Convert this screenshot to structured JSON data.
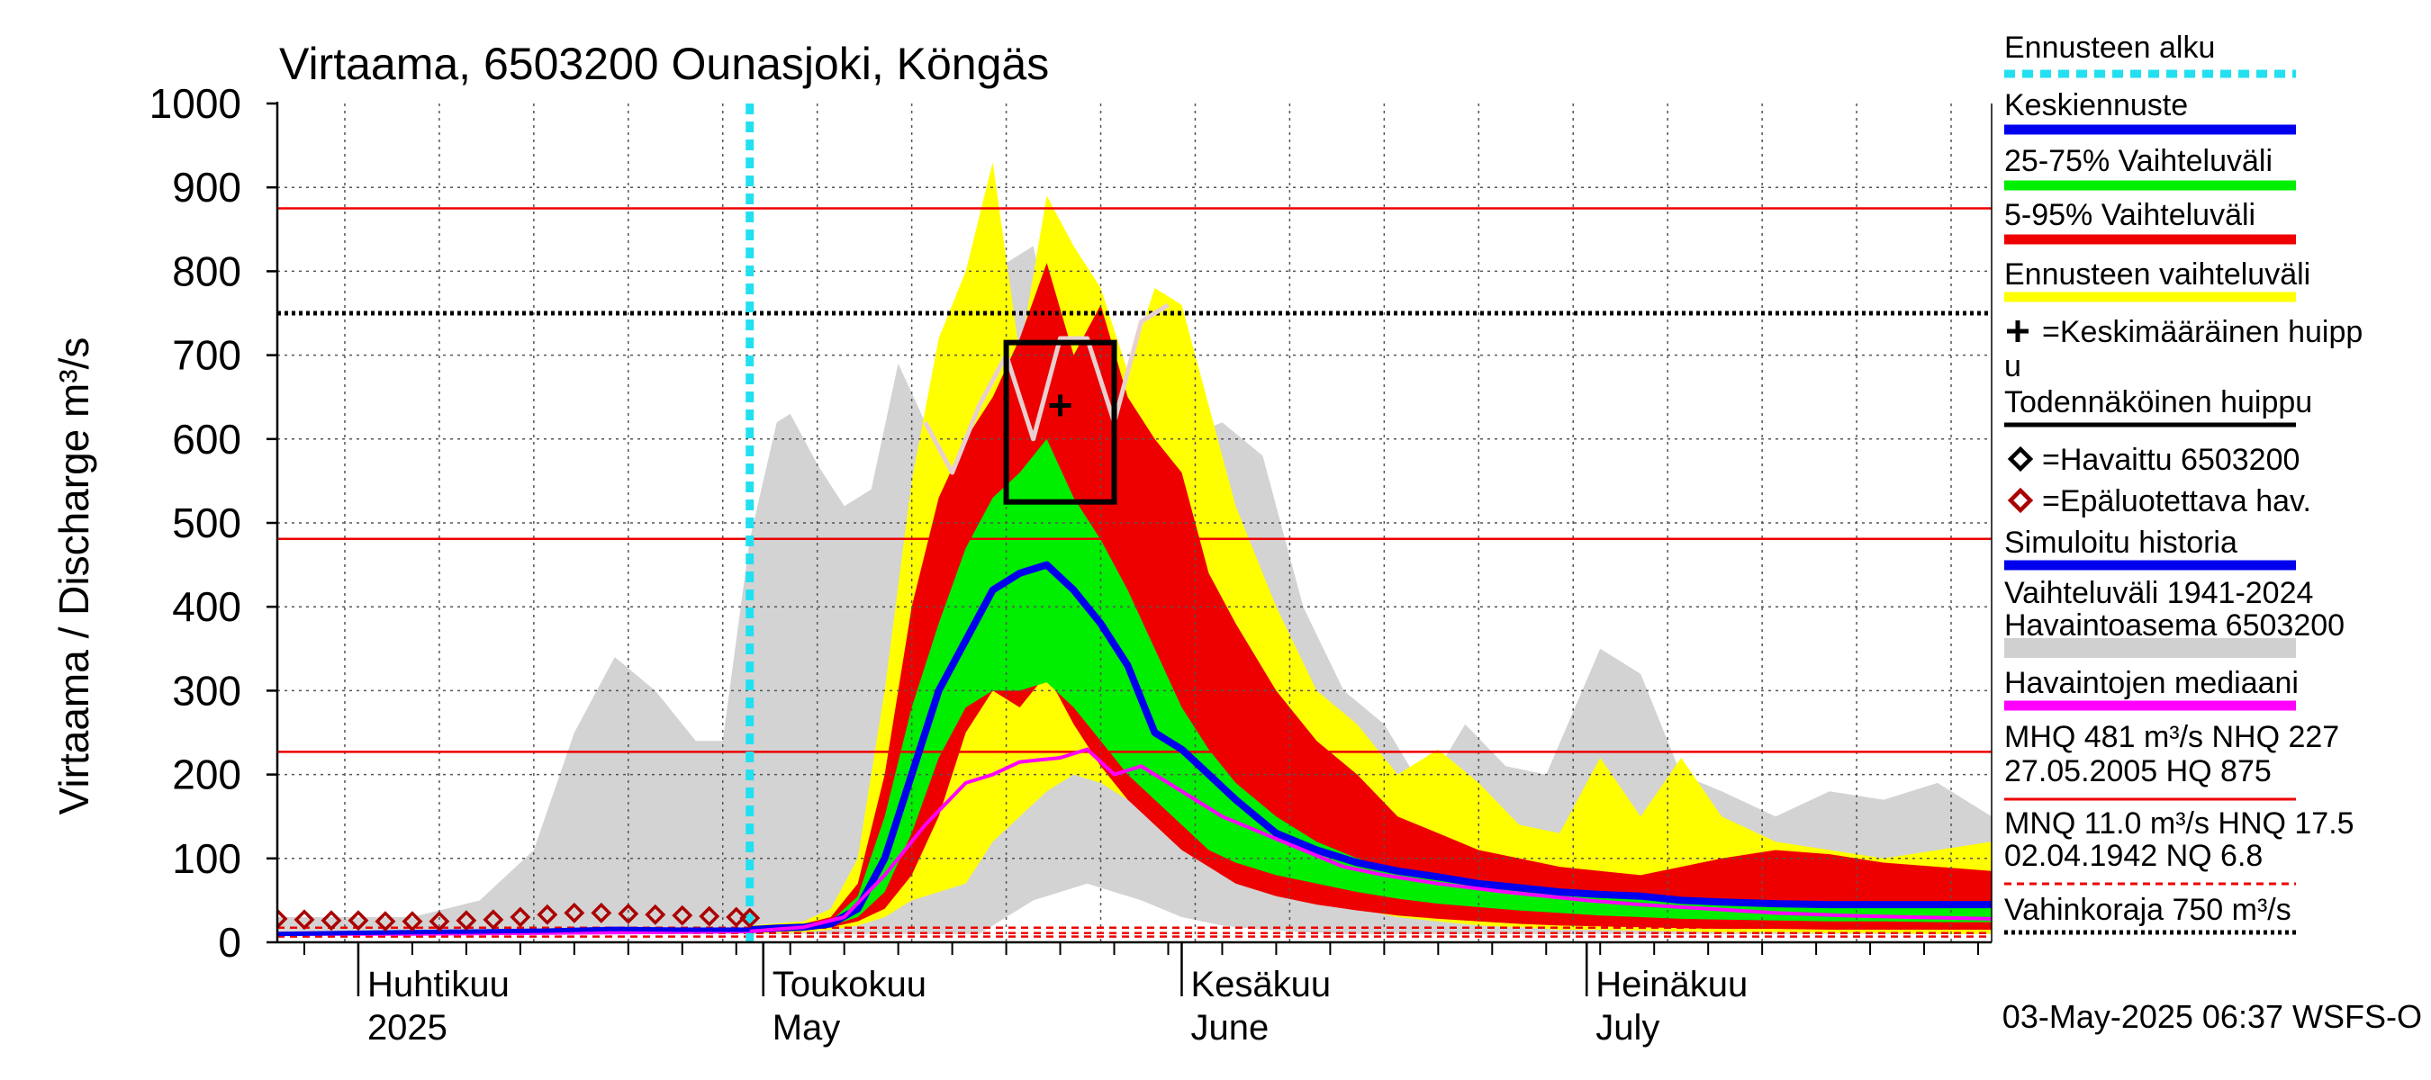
{
  "chart_data": {
    "type": "area",
    "title": "Virtaama, 6503200 Ounasjoki, Köngäs",
    "ylabel": "Virtaama / Discharge   m³/s",
    "ylim": [
      0,
      1000
    ],
    "yticks": [
      "0",
      "100",
      "200",
      "300",
      "400",
      "500",
      "600",
      "700",
      "800",
      "900",
      "1000"
    ],
    "xlim": [
      "2025-03-26",
      "2025-07-31"
    ],
    "month_labels": [
      {
        "fi": "Huhtikuu",
        "en": "2025",
        "date": "2025-04-01"
      },
      {
        "fi": "Toukokuu",
        "en": "May",
        "date": "2025-05-01"
      },
      {
        "fi": "Kesäkuu",
        "en": "June",
        "date": "2025-06-01"
      },
      {
        "fi": "Heinäkuu",
        "en": "July",
        "date": "2025-07-01"
      }
    ],
    "forecast_start": "2025-04-30",
    "reference_lines": {
      "MHQ": 481,
      "NHQ": 227,
      "HQ": 875,
      "MNQ": 11.0,
      "HNQ": 17.5,
      "NQ": 6.8,
      "damage_limit": 750
    },
    "historical_range_band": {
      "x": [
        "2025-03-26",
        "2025-04-05",
        "2025-04-10",
        "2025-04-14",
        "2025-04-17",
        "2025-04-20",
        "2025-04-23",
        "2025-04-26",
        "2025-04-28",
        "2025-04-30",
        "2025-05-02",
        "2025-05-03",
        "2025-05-05",
        "2025-05-07",
        "2025-05-09",
        "2025-05-11",
        "2025-05-13",
        "2025-05-15",
        "2025-05-17",
        "2025-05-19",
        "2025-05-21",
        "2025-05-23",
        "2025-05-25",
        "2025-05-27",
        "2025-05-29",
        "2025-06-01",
        "2025-06-04",
        "2025-06-07",
        "2025-06-10",
        "2025-06-13",
        "2025-06-16",
        "2025-06-19",
        "2025-06-22",
        "2025-06-25",
        "2025-06-28",
        "2025-07-02",
        "2025-07-05",
        "2025-07-08",
        "2025-07-11",
        "2025-07-15",
        "2025-07-19",
        "2025-07-23",
        "2025-07-27",
        "2025-07-31"
      ],
      "upper": [
        30,
        30,
        50,
        110,
        250,
        340,
        300,
        240,
        240,
        480,
        620,
        630,
        570,
        520,
        540,
        690,
        620,
        700,
        640,
        810,
        830,
        690,
        720,
        600,
        610,
        600,
        620,
        580,
        400,
        300,
        260,
        180,
        260,
        210,
        200,
        350,
        320,
        200,
        180,
        150,
        180,
        170,
        190,
        150
      ],
      "lower": [
        10,
        10,
        10,
        10,
        10,
        10,
        10,
        10,
        10,
        10,
        10,
        10,
        10,
        10,
        10,
        10,
        10,
        10,
        10,
        30,
        50,
        60,
        70,
        60,
        50,
        30,
        20,
        15,
        12,
        10,
        10,
        10,
        10,
        10,
        10,
        10,
        10,
        10,
        10,
        10,
        10,
        10,
        10,
        10
      ]
    },
    "forecast_range_yellow": {
      "x": [
        "2025-04-30",
        "2025-05-04",
        "2025-05-06",
        "2025-05-08",
        "2025-05-10",
        "2025-05-12",
        "2025-05-14",
        "2025-05-16",
        "2025-05-18",
        "2025-05-20",
        "2025-05-22",
        "2025-05-24",
        "2025-05-26",
        "2025-05-28",
        "2025-05-30",
        "2025-06-01",
        "2025-06-03",
        "2025-06-05",
        "2025-06-08",
        "2025-06-11",
        "2025-06-14",
        "2025-06-17",
        "2025-06-20",
        "2025-06-23",
        "2025-06-26",
        "2025-06-29",
        "2025-07-02",
        "2025-07-05",
        "2025-07-08",
        "2025-07-11",
        "2025-07-15",
        "2025-07-19",
        "2025-07-23",
        "2025-07-27",
        "2025-07-31"
      ],
      "upper": [
        20,
        25,
        40,
        100,
        300,
        550,
        720,
        800,
        930,
        700,
        890,
        830,
        780,
        680,
        780,
        760,
        640,
        520,
        400,
        300,
        260,
        200,
        230,
        190,
        140,
        130,
        220,
        150,
        220,
        150,
        120,
        110,
        100,
        110,
        120
      ],
      "lower": [
        10,
        12,
        15,
        20,
        30,
        50,
        60,
        70,
        120,
        150,
        180,
        200,
        190,
        170,
        150,
        130,
        100,
        80,
        60,
        50,
        40,
        30,
        25,
        20,
        18,
        15,
        15,
        14,
        13,
        12,
        12,
        11,
        11,
        10,
        10
      ]
    },
    "forecast_range_red": {
      "x": [
        "2025-04-30",
        "2025-05-04",
        "2025-05-06",
        "2025-05-08",
        "2025-05-10",
        "2025-05-12",
        "2025-05-14",
        "2025-05-16",
        "2025-05-18",
        "2025-05-20",
        "2025-05-22",
        "2025-05-24",
        "2025-05-26",
        "2025-05-28",
        "2025-05-30",
        "2025-06-01",
        "2025-06-03",
        "2025-06-05",
        "2025-06-08",
        "2025-06-11",
        "2025-06-14",
        "2025-06-17",
        "2025-06-20",
        "2025-06-23",
        "2025-06-26",
        "2025-06-29",
        "2025-07-02",
        "2025-07-05",
        "2025-07-08",
        "2025-07-11",
        "2025-07-15",
        "2025-07-19",
        "2025-07-23",
        "2025-07-27",
        "2025-07-31"
      ],
      "upper": [
        18,
        22,
        30,
        70,
        200,
        400,
        530,
        600,
        650,
        720,
        810,
        700,
        760,
        650,
        600,
        560,
        440,
        380,
        300,
        240,
        200,
        150,
        130,
        110,
        100,
        90,
        85,
        80,
        90,
        100,
        110,
        105,
        95,
        90,
        85
      ],
      "lower": [
        12,
        14,
        18,
        25,
        40,
        80,
        150,
        250,
        300,
        280,
        320,
        260,
        210,
        170,
        140,
        110,
        90,
        70,
        55,
        45,
        38,
        32,
        28,
        25,
        22,
        20,
        19,
        18,
        17,
        16,
        16,
        15,
        15,
        15,
        15
      ]
    },
    "forecast_range_green": {
      "x": [
        "2025-04-30",
        "2025-05-04",
        "2025-05-06",
        "2025-05-08",
        "2025-05-10",
        "2025-05-12",
        "2025-05-14",
        "2025-05-16",
        "2025-05-18",
        "2025-05-20",
        "2025-05-22",
        "2025-05-24",
        "2025-05-26",
        "2025-05-28",
        "2025-05-30",
        "2025-06-01",
        "2025-06-03",
        "2025-06-05",
        "2025-06-08",
        "2025-06-11",
        "2025-06-14",
        "2025-06-17",
        "2025-06-20",
        "2025-06-23",
        "2025-06-26",
        "2025-06-29",
        "2025-07-02",
        "2025-07-05",
        "2025-07-08",
        "2025-07-11",
        "2025-07-15",
        "2025-07-19",
        "2025-07-23",
        "2025-07-27",
        "2025-07-31"
      ],
      "upper": [
        16,
        20,
        25,
        55,
        150,
        280,
        380,
        470,
        530,
        560,
        600,
        530,
        480,
        420,
        350,
        280,
        230,
        190,
        150,
        120,
        100,
        85,
        75,
        68,
        62,
        58,
        55,
        52,
        50,
        50,
        48,
        47,
        46,
        45,
        45
      ],
      "lower": [
        14,
        16,
        20,
        30,
        60,
        130,
        220,
        280,
        300,
        300,
        310,
        280,
        240,
        200,
        170,
        140,
        110,
        95,
        80,
        70,
        60,
        52,
        46,
        42,
        38,
        35,
        32,
        30,
        28,
        27,
        26,
        25,
        25,
        24,
        24
      ]
    },
    "series": [
      {
        "name": "Keskiennuste",
        "x": [
          "2025-04-30",
          "2025-05-02",
          "2025-05-04",
          "2025-05-06",
          "2025-05-08",
          "2025-05-10",
          "2025-05-12",
          "2025-05-14",
          "2025-05-16",
          "2025-05-18",
          "2025-05-20",
          "2025-05-22",
          "2025-05-24",
          "2025-05-26",
          "2025-05-28",
          "2025-05-30",
          "2025-06-01",
          "2025-06-03",
          "2025-06-05",
          "2025-06-08",
          "2025-06-11",
          "2025-06-14",
          "2025-06-17",
          "2025-06-20",
          "2025-06-23",
          "2025-06-26",
          "2025-06-29",
          "2025-07-02",
          "2025-07-05",
          "2025-07-08",
          "2025-07-11",
          "2025-07-15",
          "2025-07-19",
          "2025-07-23",
          "2025-07-27",
          "2025-07-31"
        ],
        "values": [
          15,
          17,
          18,
          22,
          40,
          100,
          200,
          300,
          360,
          420,
          440,
          450,
          420,
          380,
          330,
          250,
          230,
          200,
          170,
          130,
          110,
          95,
          85,
          78,
          70,
          65,
          60,
          57,
          55,
          50,
          48,
          46,
          45,
          45,
          45,
          45
        ]
      },
      {
        "name": "Havaintojen mediaani",
        "x": [
          "2025-03-26",
          "2025-04-05",
          "2025-04-15",
          "2025-04-25",
          "2025-04-30",
          "2025-05-04",
          "2025-05-07",
          "2025-05-10",
          "2025-05-13",
          "2025-05-16",
          "2025-05-18",
          "2025-05-20",
          "2025-05-23",
          "2025-05-25",
          "2025-05-27",
          "2025-05-29",
          "2025-06-01",
          "2025-06-04",
          "2025-06-07",
          "2025-06-10",
          "2025-06-13",
          "2025-06-16",
          "2025-06-20",
          "2025-06-25",
          "2025-07-01",
          "2025-07-05",
          "2025-07-10",
          "2025-07-15",
          "2025-07-20",
          "2025-07-25",
          "2025-07-31"
        ],
        "values": [
          10,
          10,
          11,
          12,
          13,
          18,
          30,
          80,
          140,
          190,
          200,
          215,
          220,
          230,
          200,
          210,
          180,
          150,
          130,
          110,
          90,
          80,
          70,
          60,
          50,
          45,
          40,
          35,
          32,
          30,
          28
        ]
      },
      {
        "name": "Simuloitu historia",
        "x": [
          "2025-03-26",
          "2025-04-05",
          "2025-04-15",
          "2025-04-20",
          "2025-04-25",
          "2025-04-30"
        ],
        "values": [
          10,
          12,
          14,
          16,
          15,
          15
        ]
      },
      {
        "name": "Epäluotettava hav.",
        "x": [
          "2025-03-26",
          "2025-03-28",
          "2025-03-30",
          "2025-04-01",
          "2025-04-03",
          "2025-04-05",
          "2025-04-07",
          "2025-04-09",
          "2025-04-11",
          "2025-04-13",
          "2025-04-15",
          "2025-04-17",
          "2025-04-19",
          "2025-04-21",
          "2025-04-23",
          "2025-04-25",
          "2025-04-27",
          "2025-04-29",
          "2025-04-30"
        ],
        "values": [
          28,
          27,
          26,
          26,
          25,
          25,
          25,
          26,
          27,
          30,
          33,
          35,
          35,
          34,
          33,
          32,
          31,
          30,
          29
        ]
      },
      {
        "name": "historical_trace",
        "x": [
          "2025-05-13",
          "2025-05-15",
          "2025-05-17",
          "2025-05-19",
          "2025-05-21",
          "2025-05-23",
          "2025-05-25",
          "2025-05-27",
          "2025-05-29",
          "2025-05-31"
        ],
        "values": [
          620,
          560,
          640,
          700,
          600,
          720,
          720,
          620,
          740,
          760
        ]
      }
    ],
    "mean_peak": {
      "date": "2025-05-23",
      "value": 640
    },
    "probable_peak_box": {
      "x0": "2025-05-19",
      "x1": "2025-05-27",
      "y0": 525,
      "y1": 715
    },
    "legend": [
      {
        "label": "Ennusteen alku",
        "color": "#22e0f0",
        "style": "dotted"
      },
      {
        "label": "Keskiennuste",
        "color": "#0000ee",
        "style": "solid"
      },
      {
        "label": "25-75% Vaihteluväli",
        "color": "#00ee00",
        "style": "solid"
      },
      {
        "label": "5-95% Vaihteluväli",
        "color": "#ee0000",
        "style": "solid"
      },
      {
        "label": "Ennusteen vaihteluväli",
        "color": "#ffff00",
        "style": "solid"
      },
      {
        "label": "=Keskimääräinen huipp",
        "label2": "u",
        "color": "#000000",
        "style": "plus"
      },
      {
        "label": "Todennäköinen huippu",
        "color": "#000000",
        "style": "solid"
      },
      {
        "label": "=Havaittu 6503200",
        "color": "#000000",
        "style": "diamond"
      },
      {
        "label": "=Epäluotettava hav.",
        "color": "#aa0000",
        "style": "diamond"
      },
      {
        "label": "Simuloitu historia",
        "color": "#0000ee",
        "style": "solid"
      },
      {
        "label": "Vaihteluväli 1941-2024",
        "label2": " Havaintoasema 6503200",
        "color": "#d0d0d0",
        "style": "solid"
      },
      {
        "label": "Havaintojen mediaani",
        "color": "#ff00ff",
        "style": "solid"
      },
      {
        "label": "MHQ  481 m³/s NHQ  227",
        "label2": "27.05.2005 HQ  875",
        "color": "#ee0000",
        "style": "thin"
      },
      {
        "label": "MNQ 11.0 m³/s HNQ 17.5",
        "label2": "02.04.1942 NQ  6.8",
        "color": "#ee0000",
        "style": "dashed"
      },
      {
        "label": "Vahinkoraja 750 m³/s",
        "color": "#000000",
        "style": "dotted"
      }
    ],
    "footer": "03-May-2025 06:37 WSFS-O"
  }
}
